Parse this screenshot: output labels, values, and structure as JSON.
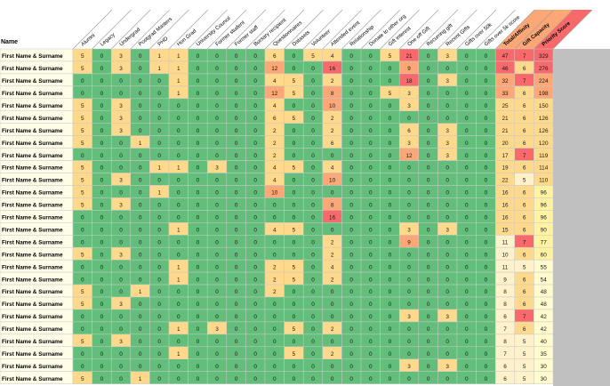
{
  "name_header": "Name",
  "columns": [
    "Alumni",
    "Legacy",
    "Undergrad",
    "Postgrad Masters",
    "PHD",
    "Hon Grad",
    "University Council",
    "Former student",
    "Former staff",
    "Bursary recipient",
    "Questionnaires",
    "Datasets",
    "Volunteer",
    "Attended event",
    "Relationship",
    "Donate to other org",
    "Gift interest",
    "One off Gift",
    "Recurring gift",
    "Recent Gifts",
    "Gifts over 50k",
    "Gifts over 5k score",
    "Total/Affinity",
    "Gift Capacity",
    "Priority Score"
  ],
  "colors": {
    "green": "#63be7b",
    "light_orange": "#ffd98b",
    "orange": "#fca775",
    "red": "#f8696b",
    "yellow": "#fff2a1",
    "light_yellow": "#fffbcc",
    "name_fill": "#fffde7",
    "total_light": "#fff1c9",
    "grid": "#c8c8c8",
    "gray": "#c0c0c0"
  },
  "rows": [
    {
      "name": "First Name & Surname",
      "values": [
        5,
        0,
        3,
        0,
        1,
        1,
        0,
        0,
        0,
        0,
        6,
        0,
        5,
        4,
        0,
        0,
        5,
        21,
        0,
        3,
        0,
        0,
        47,
        7,
        329
      ]
    },
    {
      "name": "First Name & Surname",
      "values": [
        5,
        0,
        3,
        0,
        1,
        1,
        0,
        0,
        0,
        0,
        12,
        0,
        0,
        16,
        0,
        0,
        0,
        9,
        0,
        0,
        0,
        0,
        46,
        6,
        276
      ]
    },
    {
      "name": "First Name & Surname",
      "values": [
        0,
        0,
        0,
        0,
        0,
        1,
        0,
        0,
        0,
        0,
        4,
        5,
        0,
        2,
        0,
        0,
        0,
        18,
        0,
        3,
        0,
        0,
        32,
        7,
        224
      ]
    },
    {
      "name": "First Name & Surname",
      "values": [
        0,
        0,
        0,
        0,
        0,
        1,
        0,
        0,
        0,
        0,
        12,
        5,
        0,
        8,
        0,
        0,
        5,
        3,
        0,
        0,
        0,
        0,
        33,
        6,
        198
      ]
    },
    {
      "name": "First Name & Surname",
      "values": [
        5,
        0,
        3,
        0,
        0,
        0,
        0,
        0,
        0,
        0,
        4,
        0,
        0,
        10,
        0,
        0,
        0,
        3,
        0,
        0,
        0,
        0,
        25,
        6,
        150
      ]
    },
    {
      "name": "First Name & Surname",
      "values": [
        5,
        0,
        3,
        0,
        0,
        0,
        0,
        0,
        0,
        0,
        6,
        5,
        0,
        2,
        0,
        0,
        0,
        0,
        0,
        0,
        0,
        0,
        21,
        6,
        126
      ]
    },
    {
      "name": "First Name & Surname",
      "values": [
        5,
        0,
        3,
        0,
        0,
        0,
        0,
        0,
        0,
        0,
        2,
        0,
        0,
        2,
        0,
        0,
        0,
        6,
        0,
        3,
        0,
        0,
        21,
        6,
        126
      ]
    },
    {
      "name": "First Name & Surname",
      "values": [
        5,
        0,
        0,
        1,
        0,
        0,
        0,
        0,
        0,
        0,
        2,
        0,
        0,
        6,
        0,
        0,
        0,
        3,
        0,
        3,
        0,
        0,
        20,
        6,
        120
      ]
    },
    {
      "name": "First Name & Surname",
      "values": [
        0,
        0,
        0,
        0,
        0,
        0,
        0,
        0,
        0,
        0,
        2,
        0,
        0,
        0,
        0,
        0,
        0,
        12,
        0,
        3,
        0,
        0,
        17,
        7,
        119
      ]
    },
    {
      "name": "First Name & Surname",
      "values": [
        5,
        0,
        0,
        0,
        1,
        1,
        0,
        3,
        0,
        0,
        4,
        5,
        0,
        4,
        0,
        0,
        0,
        0,
        0,
        0,
        0,
        0,
        19,
        6,
        114
      ]
    },
    {
      "name": "First Name & Surname",
      "values": [
        5,
        0,
        3,
        0,
        0,
        0,
        0,
        0,
        0,
        0,
        4,
        0,
        0,
        10,
        0,
        0,
        0,
        0,
        0,
        0,
        0,
        0,
        22,
        5,
        110
      ]
    },
    {
      "name": "First Name & Surname",
      "values": [
        5,
        0,
        0,
        0,
        1,
        0,
        0,
        0,
        0,
        0,
        10,
        0,
        0,
        0,
        0,
        0,
        0,
        0,
        0,
        0,
        0,
        0,
        16,
        6,
        96
      ]
    },
    {
      "name": "First Name & Surname",
      "values": [
        5,
        0,
        3,
        0,
        0,
        0,
        0,
        0,
        0,
        0,
        0,
        0,
        0,
        8,
        0,
        0,
        0,
        0,
        0,
        0,
        0,
        0,
        16,
        6,
        96
      ]
    },
    {
      "name": "First Name & Surname",
      "values": [
        0,
        0,
        0,
        0,
        0,
        0,
        0,
        0,
        0,
        0,
        0,
        0,
        0,
        16,
        0,
        0,
        0,
        0,
        0,
        0,
        0,
        0,
        16,
        6,
        96
      ]
    },
    {
      "name": "First Name & Surname",
      "values": [
        0,
        0,
        0,
        0,
        0,
        1,
        0,
        0,
        0,
        0,
        4,
        5,
        0,
        0,
        0,
        0,
        0,
        3,
        0,
        3,
        0,
        0,
        15,
        6,
        90
      ]
    },
    {
      "name": "First Name & Surname",
      "values": [
        0,
        0,
        0,
        0,
        0,
        0,
        0,
        0,
        0,
        0,
        0,
        0,
        0,
        2,
        0,
        0,
        0,
        9,
        0,
        0,
        0,
        0,
        11,
        7,
        77
      ]
    },
    {
      "name": "First Name & Surname",
      "values": [
        5,
        0,
        3,
        0,
        0,
        0,
        0,
        0,
        0,
        0,
        0,
        0,
        0,
        2,
        0,
        0,
        0,
        0,
        0,
        0,
        0,
        0,
        10,
        6,
        60
      ]
    },
    {
      "name": "First Name & Surname",
      "values": [
        0,
        0,
        0,
        0,
        0,
        1,
        0,
        0,
        0,
        0,
        2,
        5,
        0,
        4,
        0,
        0,
        0,
        0,
        0,
        0,
        0,
        0,
        11,
        5,
        55
      ]
    },
    {
      "name": "First Name & Surname",
      "values": [
        0,
        0,
        0,
        0,
        0,
        1,
        0,
        0,
        0,
        0,
        2,
        5,
        0,
        2,
        0,
        0,
        0,
        0,
        0,
        0,
        0,
        0,
        9,
        6,
        54
      ]
    },
    {
      "name": "First Name & Surname",
      "values": [
        5,
        0,
        0,
        1,
        0,
        0,
        0,
        0,
        0,
        0,
        2,
        0,
        0,
        0,
        0,
        0,
        0,
        0,
        0,
        0,
        0,
        0,
        8,
        6,
        48
      ]
    },
    {
      "name": "First Name & Surname",
      "values": [
        5,
        0,
        3,
        0,
        0,
        0,
        0,
        0,
        0,
        0,
        0,
        0,
        0,
        0,
        0,
        0,
        0,
        0,
        0,
        0,
        0,
        0,
        8,
        6,
        48
      ]
    },
    {
      "name": "First Name & Surname",
      "values": [
        0,
        0,
        0,
        0,
        0,
        0,
        0,
        0,
        0,
        0,
        0,
        0,
        0,
        0,
        0,
        0,
        0,
        3,
        0,
        3,
        0,
        0,
        6,
        7,
        42
      ]
    },
    {
      "name": "First Name & Surname",
      "values": [
        0,
        0,
        0,
        0,
        0,
        1,
        0,
        3,
        0,
        0,
        0,
        5,
        0,
        2,
        0,
        0,
        0,
        0,
        0,
        0,
        0,
        0,
        7,
        6,
        42
      ]
    },
    {
      "name": "First Name & Surname",
      "values": [
        5,
        0,
        3,
        0,
        0,
        0,
        0,
        0,
        0,
        0,
        0,
        0,
        0,
        0,
        0,
        0,
        0,
        0,
        0,
        0,
        0,
        0,
        8,
        5,
        40
      ]
    },
    {
      "name": "First Name & Surname",
      "values": [
        0,
        0,
        0,
        0,
        0,
        1,
        0,
        0,
        0,
        0,
        0,
        5,
        0,
        2,
        0,
        0,
        0,
        0,
        0,
        0,
        0,
        0,
        7,
        5,
        35
      ]
    },
    {
      "name": "First Name & Surname",
      "values": [
        0,
        0,
        0,
        0,
        0,
        0,
        0,
        0,
        0,
        0,
        0,
        0,
        0,
        0,
        0,
        0,
        0,
        3,
        0,
        3,
        0,
        0,
        6,
        5,
        30
      ]
    },
    {
      "name": "First Name & Surname",
      "values": [
        5,
        0,
        0,
        1,
        0,
        0,
        0,
        0,
        0,
        0,
        0,
        0,
        0,
        0,
        0,
        0,
        0,
        0,
        0,
        0,
        0,
        0,
        6,
        5,
        30
      ]
    }
  ]
}
